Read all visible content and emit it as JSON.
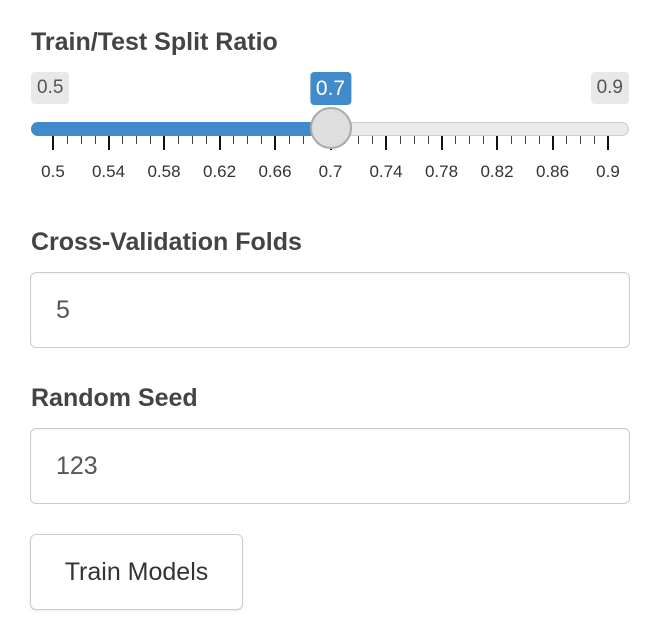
{
  "split": {
    "label": "Train/Test Split Ratio",
    "min": 0.5,
    "max": 0.9,
    "value": 0.7,
    "min_label": "0.5",
    "max_label": "0.9",
    "value_label": "0.7",
    "tick_labels": [
      "0.5",
      "0.54",
      "0.58",
      "0.62",
      "0.66",
      "0.7",
      "0.74",
      "0.78",
      "0.82",
      "0.86",
      "0.9"
    ],
    "accent_color": "#428bca"
  },
  "folds": {
    "label": "Cross-Validation Folds",
    "value": "5"
  },
  "seed": {
    "label": "Random Seed",
    "value": "123"
  },
  "train_button": {
    "label": "Train Models"
  }
}
